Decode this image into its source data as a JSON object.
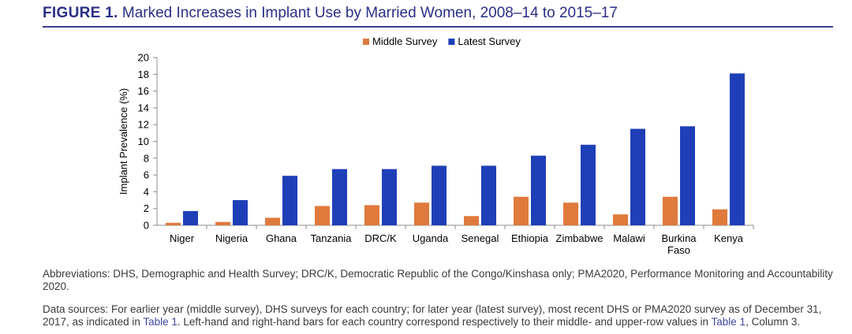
{
  "figure": {
    "number": "FIGURE 1.",
    "title": "Marked Increases in Implant Use by Married Women, 2008–14 to 2015–17"
  },
  "colors": {
    "middle": "#e07a3c",
    "latest": "#1f3fb8",
    "title": "#2a2f86",
    "link": "#3d4a9e"
  },
  "chart_data": {
    "type": "bar",
    "title": "",
    "xlabel": "",
    "ylabel": "Implant Prevalence (%)",
    "ylim": [
      0,
      20
    ],
    "yticks": [
      0,
      2,
      4,
      6,
      8,
      10,
      12,
      14,
      16,
      18,
      20
    ],
    "grid": false,
    "legend": "top-center",
    "categories": [
      [
        "Niger"
      ],
      [
        "Nigeria"
      ],
      [
        "Ghana"
      ],
      [
        "Tanzania"
      ],
      [
        "DRC/K"
      ],
      [
        "Uganda"
      ],
      [
        "Senegal"
      ],
      [
        "Ethiopia"
      ],
      [
        "Zimbabwe"
      ],
      [
        "Malawi"
      ],
      [
        "Burkina",
        "Faso"
      ],
      [
        "Kenya"
      ]
    ],
    "series": [
      {
        "name": "Middle Survey",
        "values": [
          0.3,
          0.4,
          0.9,
          2.3,
          2.4,
          2.7,
          1.1,
          3.4,
          2.7,
          1.3,
          3.4,
          1.9
        ]
      },
      {
        "name": "Latest Survey",
        "values": [
          1.7,
          3.0,
          5.9,
          6.7,
          6.7,
          7.1,
          7.1,
          8.3,
          9.6,
          11.5,
          11.8,
          18.1
        ]
      }
    ]
  },
  "notes": {
    "abbreviations": "Abbreviations: DHS, Demographic and Health Survey; DRC/K, Democratic Republic of the Congo/Kinshasa only; PMA2020, Performance Monitoring and Accountability 2020.",
    "sources_part1": "Data sources: For earlier year (middle survey), DHS surveys for each country; for later year (latest survey), most recent DHS or PMA2020 survey as of December 31, 2017, as indicated in ",
    "sources_link1": "Table 1",
    "sources_part2": ". Left-hand and right-hand bars for each country correspond respectively to their middle- and upper-row values in ",
    "sources_link2": "Table 1",
    "sources_part3": ", Column 3."
  }
}
